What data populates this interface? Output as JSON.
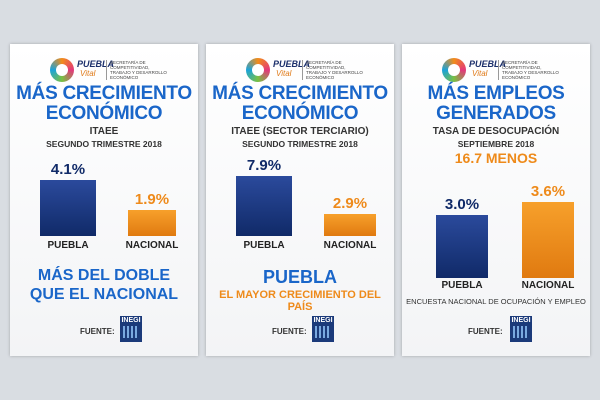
{
  "logo": {
    "word": "PUEBLA",
    "word2": "Vital",
    "secretaria": "SECRETARÍA DE COMPETITIVIDAD, TRABAJO Y DESARROLLO ECONÓMICO",
    "gobierno": "GOBIERNO DE PUEBLA"
  },
  "panels": [
    {
      "title_line1": "MÁS CRECIMIENTO",
      "title_line2": "ECONÓMICO",
      "subtitle1": "ITAEE",
      "subtitle2": "SEGUNDO TRIMESTRE 2018",
      "slogan_line1": "MÁS DEL DOBLE",
      "slogan_line2": "QUE EL NACIONAL",
      "source_label": "FUENTE:",
      "source_logo": "INEGI"
    },
    {
      "title_line1": "MÁS CRECIMIENTO",
      "title_line2": "ECONÓMICO",
      "subtitle1": "ITAEE (SECTOR TERCIARIO)",
      "subtitle2": "SEGUNDO TRIMESTRE 2018",
      "slogan_line1": "PUEBLA",
      "slogan_line2": "EL MAYOR CRECIMIENTO DEL PAÍS",
      "source_label": "FUENTE:",
      "source_logo": "INEGI"
    },
    {
      "title_line1": "MÁS EMPLEOS",
      "title_line2": "GENERADOS",
      "subtitle1": "TASA DE DESOCUPACIÓN",
      "subtitle2": "SEPTIEMBRE 2018",
      "highlight": "16.7 MENOS",
      "footer_note": "ENCUESTA NACIONAL DE OCUPACIÓN Y EMPLEO",
      "source_label": "FUENTE:",
      "source_logo": "INEGI"
    }
  ],
  "colors": {
    "blue": "#102a68",
    "orange": "#ee8a1a",
    "title_blue": "#1a66c9"
  },
  "chart_data": [
    {
      "type": "bar",
      "categories": [
        "PUEBLA",
        "NACIONAL"
      ],
      "values": [
        4.1,
        1.9
      ],
      "labels": [
        "4.1%",
        "1.9%"
      ],
      "title": "MÁS CRECIMIENTO ECONÓMICO"
    },
    {
      "type": "bar",
      "categories": [
        "PUEBLA",
        "NACIONAL"
      ],
      "values": [
        7.9,
        2.9
      ],
      "labels": [
        "7.9%",
        "2.9%"
      ],
      "title": "MÁS CRECIMIENTO ECONÓMICO"
    },
    {
      "type": "bar",
      "categories": [
        "PUEBLA",
        "NACIONAL"
      ],
      "values": [
        3.0,
        3.6
      ],
      "labels": [
        "3.0%",
        "3.6%"
      ],
      "title": "MÁS EMPLEOS GENERADOS"
    }
  ]
}
